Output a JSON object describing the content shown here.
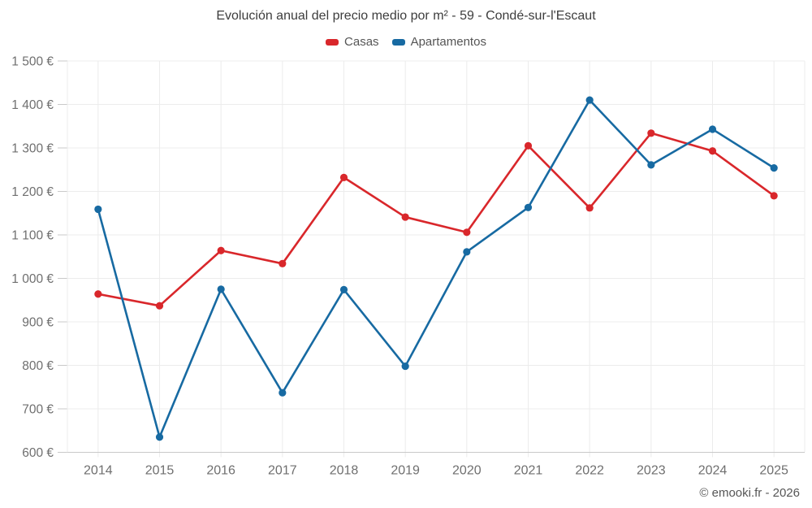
{
  "chart": {
    "title": "Evolución anual del precio medio por m² - 59 - Condé-sur-l'Escaut",
    "footer": "© emooki.fr - 2026"
  },
  "chart_data": {
    "type": "line",
    "title": "Evolución anual del precio medio por m² - 59 - Condé-sur-l'Escaut",
    "categories": [
      "2014",
      "2015",
      "2016",
      "2017",
      "2018",
      "2019",
      "2020",
      "2021",
      "2022",
      "2023",
      "2024",
      "2025"
    ],
    "series": [
      {
        "name": "Casas",
        "color": "#d9272b",
        "values": [
          964,
          937,
          1064,
          1034,
          1232,
          1141,
          1106,
          1305,
          1162,
          1334,
          1293,
          1190
        ]
      },
      {
        "name": "Apartamentos",
        "color": "#176aa2",
        "values": [
          1159,
          635,
          975,
          737,
          974,
          798,
          1061,
          1163,
          1410,
          1261,
          1343,
          1254
        ]
      }
    ],
    "ylabel": "",
    "xlabel": "",
    "ylim": [
      600,
      1500
    ],
    "ytick_step": 100,
    "ytick_labels": [
      "600 €",
      "700 €",
      "800 €",
      "900 €",
      "1 000 €",
      "1 100 €",
      "1 200 €",
      "1 300 €",
      "1 400 €",
      "1 500 €"
    ],
    "grid": true,
    "legend_position": "top",
    "unit": "€"
  }
}
